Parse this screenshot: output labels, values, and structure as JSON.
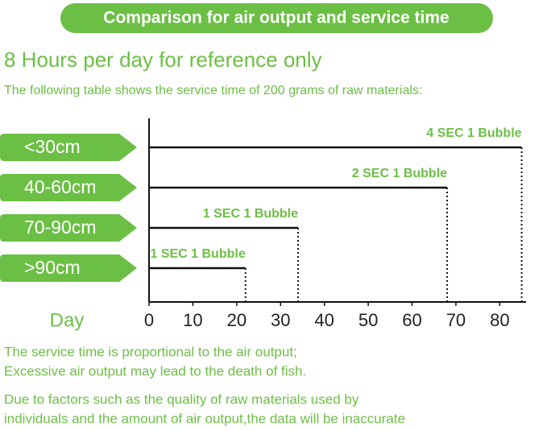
{
  "header": {
    "title": "Comparison for air output and service time"
  },
  "chart_data": {
    "type": "bar",
    "orientation": "horizontal",
    "title": "8 Hours per day for reference only",
    "subtitle": "The following table shows the service time of 200 grams of raw materials:",
    "x_label": "Day",
    "categories": [
      "<30cm",
      "40-60cm",
      "70-90cm",
      ">90cm"
    ],
    "values": [
      85,
      68,
      34,
      22
    ],
    "annotations": [
      "4 SEC 1 Bubble",
      "2 SEC 1 Bubble",
      "1 SEC 1 Bubble",
      "1 SEC 1 Bubble"
    ],
    "xlim": [
      0,
      86
    ],
    "xticks": [
      0,
      10,
      20,
      30,
      40,
      50,
      60,
      70,
      80
    ],
    "color": "#111111",
    "accent": "#6cbf45"
  },
  "notes": [
    "The service time is proportional to the air output;",
    "Excessive air output may lead to the death of fish.",
    "Due to factors such as the quality of raw materials used by",
    "individuals and the amount of air output,the data will be inaccurate"
  ]
}
